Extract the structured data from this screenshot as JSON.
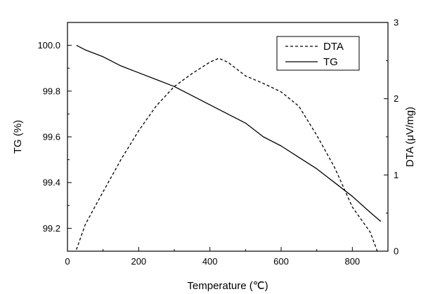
{
  "chart_data": {
    "type": "line",
    "xlabel": "Temperature (℃)",
    "ylabel": "TG (%)",
    "y2label": "DTA (μV/mg)",
    "xlim": [
      0,
      900
    ],
    "ylim": [
      99.1,
      100.1
    ],
    "y2lim": [
      0,
      3
    ],
    "x_ticks": [
      0,
      200,
      400,
      600,
      800
    ],
    "y_ticks": [
      99.2,
      99.4,
      99.6,
      99.8,
      100.0
    ],
    "y2_ticks": [
      0,
      1,
      2,
      3
    ],
    "x_tick_labels": [
      "0",
      "200",
      "400",
      "600",
      "800"
    ],
    "y_tick_labels": [
      "99.2",
      "99.4",
      "99.6",
      "99.8",
      "100.0"
    ],
    "y2_tick_labels": [
      "0",
      "1",
      "2",
      "3"
    ],
    "legend_position": "top-right",
    "grid": false,
    "series": [
      {
        "name": "DTA",
        "axis": "right",
        "style": "dashed",
        "color": "#000000",
        "x": [
          25,
          50,
          100,
          150,
          200,
          250,
          300,
          350,
          400,
          425,
          450,
          500,
          550,
          600,
          650,
          700,
          750,
          800,
          850,
          870
        ],
        "y": [
          0.02,
          0.35,
          0.78,
          1.2,
          1.58,
          1.91,
          2.16,
          2.33,
          2.48,
          2.53,
          2.48,
          2.3,
          2.2,
          2.09,
          1.9,
          1.52,
          1.1,
          0.58,
          0.25,
          0.0
        ]
      },
      {
        "name": "TG",
        "axis": "left",
        "style": "solid",
        "color": "#000000",
        "x": [
          25,
          50,
          100,
          150,
          200,
          250,
          300,
          350,
          400,
          450,
          500,
          550,
          600,
          650,
          700,
          750,
          800,
          850,
          880
        ],
        "y": [
          100.0,
          99.98,
          99.95,
          99.91,
          99.88,
          99.85,
          99.82,
          99.78,
          99.74,
          99.7,
          99.66,
          99.6,
          99.56,
          99.51,
          99.46,
          99.4,
          99.34,
          99.27,
          99.23
        ]
      }
    ]
  }
}
